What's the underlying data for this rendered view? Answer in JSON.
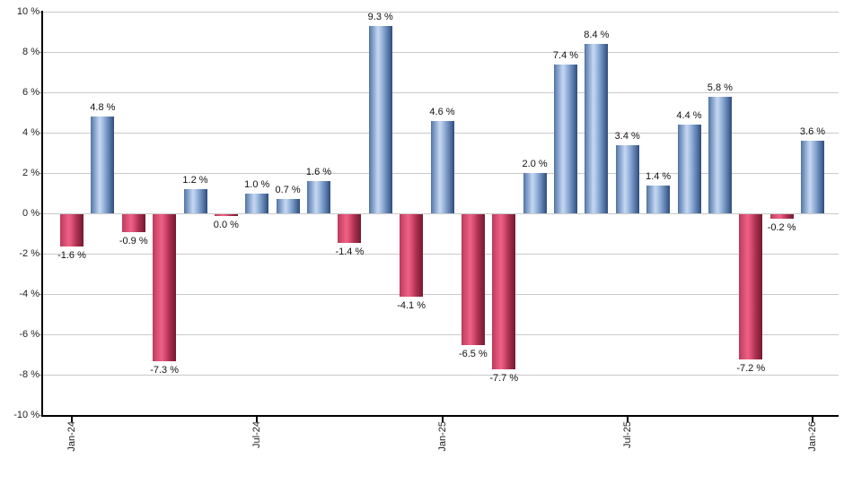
{
  "chart_data": {
    "type": "bar",
    "title": "",
    "xlabel": "",
    "ylabel": "",
    "ylim": [
      -10,
      10
    ],
    "ytick_step": 2,
    "grid": "horizontal",
    "legend_position": "none",
    "y_ticks": [
      "10 %",
      "8 %",
      "6 %",
      "4 %",
      "2 %",
      "0 %",
      "-2 %",
      "-4 %",
      "-6 %",
      "-8 %",
      "-10 %"
    ],
    "x_ticks": [
      {
        "month_index": 0,
        "label": "Jan-24"
      },
      {
        "month_index": 6,
        "label": "Jul-24"
      },
      {
        "month_index": 12,
        "label": "Jan-25"
      },
      {
        "month_index": 18,
        "label": "Jul-25"
      },
      {
        "month_index": 24,
        "label": "Jan-26"
      }
    ],
    "points": [
      {
        "value": -1.6,
        "label": "-1.6 %"
      },
      {
        "value": 4.8,
        "label": "4.8 %"
      },
      {
        "value": -0.9,
        "label": "-0.9 %"
      },
      {
        "value": -7.3,
        "label": "-7.3 %"
      },
      {
        "value": 1.2,
        "label": "1.2 %"
      },
      {
        "value": 0.0,
        "label": "0.0 %"
      },
      {
        "value": 1.0,
        "label": "1.0 %"
      },
      {
        "value": 0.7,
        "label": "0.7 %"
      },
      {
        "value": 1.6,
        "label": "1.6 %"
      },
      {
        "value": -1.4,
        "label": "-1.4 %"
      },
      {
        "value": 9.3,
        "label": "9.3 %"
      },
      {
        "value": -4.1,
        "label": "-4.1 %"
      },
      {
        "value": 4.6,
        "label": "4.6 %"
      },
      {
        "value": -6.5,
        "label": "-6.5 %"
      },
      {
        "value": -7.7,
        "label": "-7.7 %"
      },
      {
        "value": 2.0,
        "label": "2.0 %"
      },
      {
        "value": 7.4,
        "label": "7.4 %"
      },
      {
        "value": 8.4,
        "label": "8.4 %"
      },
      {
        "value": 3.4,
        "label": "3.4 %"
      },
      {
        "value": 1.4,
        "label": "1.4 %"
      },
      {
        "value": 4.4,
        "label": "4.4 %"
      },
      {
        "value": 5.8,
        "label": "5.8 %"
      },
      {
        "value": -7.2,
        "label": "-7.2 %"
      },
      {
        "value": -0.2,
        "label": "-0.2 %"
      },
      {
        "value": 3.6,
        "label": "3.6 %"
      }
    ],
    "colors": {
      "positive_bar": "#6e94ca",
      "negative_bar": "#d04a6e",
      "gridline": "#c9c9c9",
      "axis": "#000000",
      "text": "#222222"
    }
  }
}
